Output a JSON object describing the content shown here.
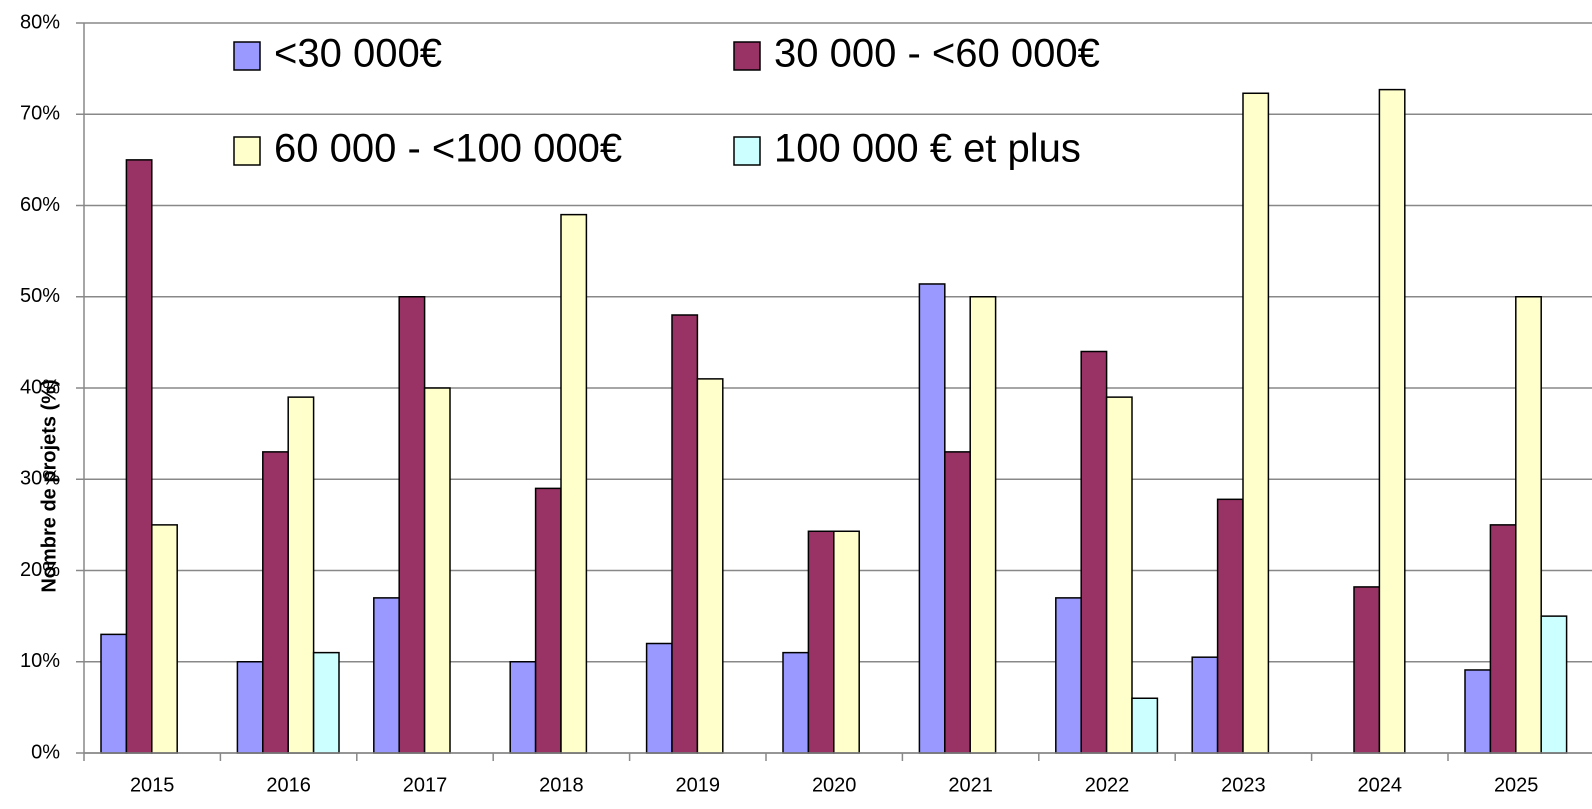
{
  "chart_data": {
    "type": "bar",
    "y_label": "Nombre de projets (%)",
    "categories": [
      "2015",
      "2016",
      "2017",
      "2018",
      "2019",
      "2020",
      "2021",
      "2022",
      "2023",
      "2024",
      "2025"
    ],
    "series": [
      {
        "name": "<30 000€",
        "color": "#9999ff",
        "values": [
          13,
          10,
          17,
          10,
          12,
          11,
          51.4,
          17,
          10.5,
          0,
          9.1
        ]
      },
      {
        "name": "30 000 - <60 000€",
        "color": "#993366",
        "values": [
          65,
          33,
          50,
          29,
          48,
          24.3,
          33,
          44,
          27.8,
          18.2,
          25
        ]
      },
      {
        "name": "60 000 - <100 000€",
        "color": "#ffffcc",
        "values": [
          25,
          39,
          40,
          59,
          41,
          24.3,
          50,
          39,
          72.3,
          72.7,
          50
        ]
      },
      {
        "name": "100 000 € et plus",
        "color": "#ccffff",
        "values": [
          0,
          11,
          0,
          0,
          0,
          0,
          0,
          6,
          0,
          0,
          15
        ]
      }
    ],
    "ylim": [
      0,
      80
    ],
    "yticks": [
      {
        "value": 0,
        "label": "0%"
      },
      {
        "value": 10,
        "label": "10%"
      },
      {
        "value": 20,
        "label": "20%"
      },
      {
        "value": 30,
        "label": "30%"
      },
      {
        "value": 40,
        "label": "40%"
      },
      {
        "value": 50,
        "label": "50%"
      },
      {
        "value": 60,
        "label": "60%"
      },
      {
        "value": 70,
        "label": "70%"
      },
      {
        "value": 80,
        "label": "80%"
      }
    ],
    "grid": true
  }
}
